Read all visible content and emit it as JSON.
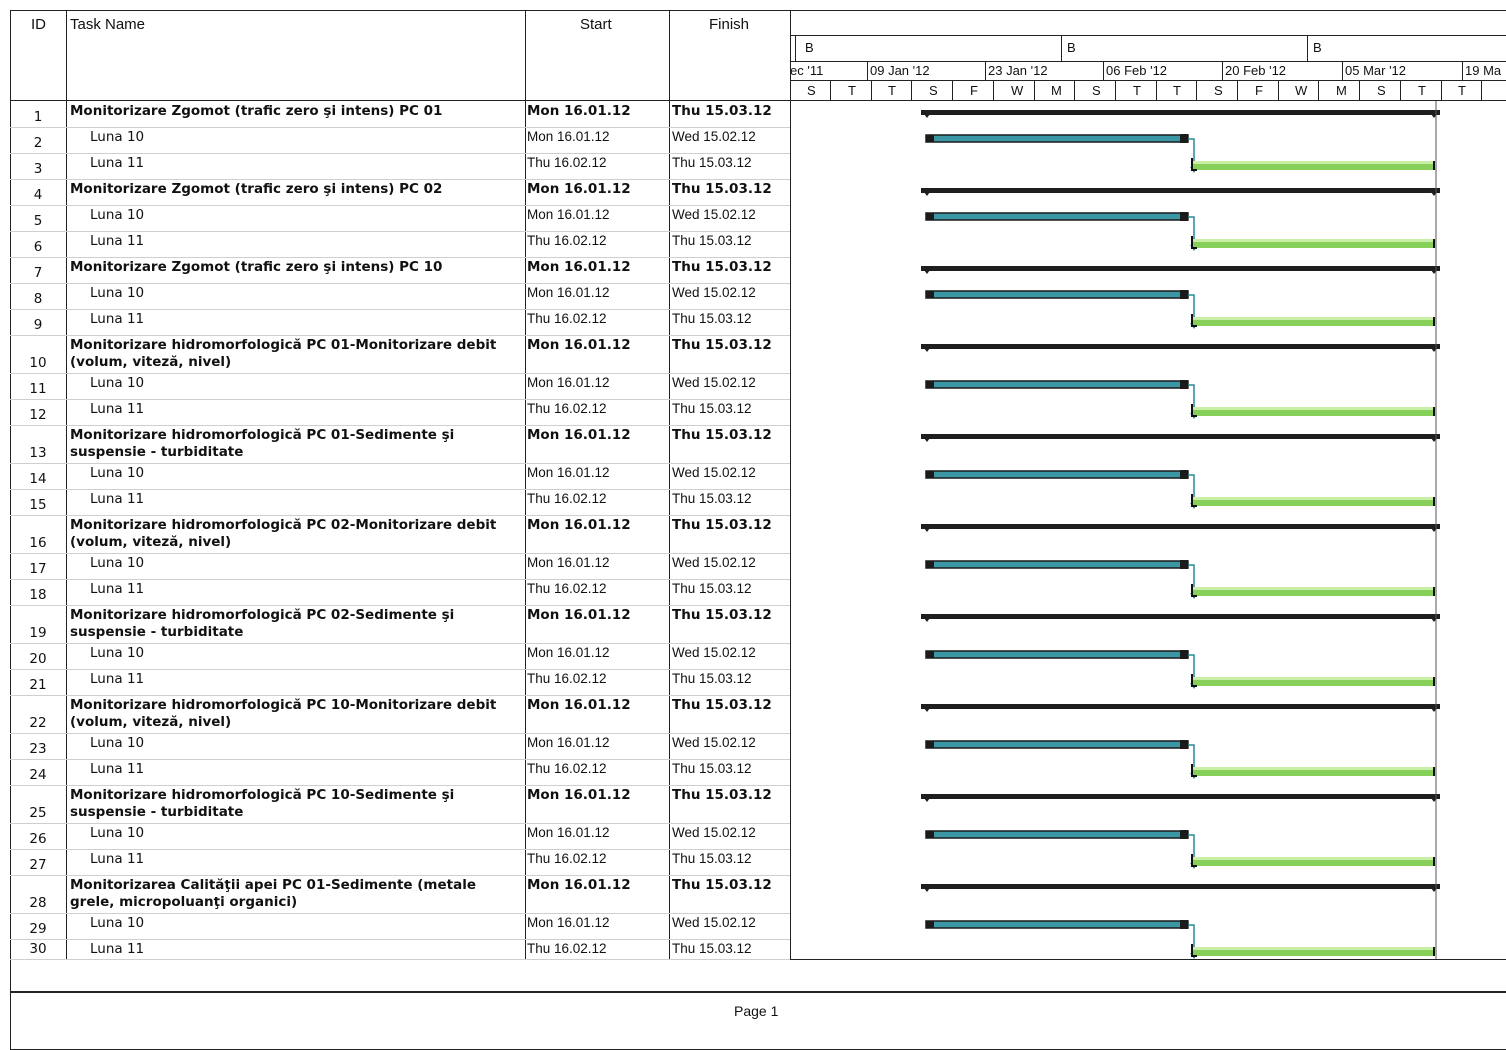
{
  "headers": {
    "id": "ID",
    "task": "Task Name",
    "start": "Start",
    "finish": "Finish"
  },
  "timescale": {
    "top": [
      "B",
      "B",
      "B"
    ],
    "mid": [
      "ec '11",
      "09 Jan '12",
      "23 Jan '12",
      "06 Feb '12",
      "20 Feb '12",
      "05 Mar '12",
      "19 Ma"
    ],
    "days": [
      "S",
      "T",
      "T",
      "S",
      "F",
      "W",
      "M",
      "S",
      "T",
      "T",
      "S",
      "F",
      "W",
      "M",
      "S",
      "T",
      "T"
    ]
  },
  "tasks": [
    {
      "id": "1",
      "name": "Monitorizare Zgomot (trafic zero şi intens) PC 01",
      "start": "Mon 16.01.12",
      "finish": "Thu 15.03.12",
      "summary": true
    },
    {
      "id": "2",
      "name": "Luna 10",
      "start": "Mon 16.01.12",
      "finish": "Wed 15.02.12",
      "summary": false
    },
    {
      "id": "3",
      "name": "Luna 11",
      "start": "Thu 16.02.12",
      "finish": "Thu 15.03.12",
      "summary": false
    },
    {
      "id": "4",
      "name": "Monitorizare Zgomot (trafic zero şi intens) PC 02",
      "start": "Mon 16.01.12",
      "finish": "Thu 15.03.12",
      "summary": true
    },
    {
      "id": "5",
      "name": "Luna 10",
      "start": "Mon 16.01.12",
      "finish": "Wed 15.02.12",
      "summary": false
    },
    {
      "id": "6",
      "name": "Luna 11",
      "start": "Thu 16.02.12",
      "finish": "Thu 15.03.12",
      "summary": false
    },
    {
      "id": "7",
      "name": "Monitorizare Zgomot (trafic zero şi intens) PC 10",
      "start": "Mon 16.01.12",
      "finish": "Thu 15.03.12",
      "summary": true
    },
    {
      "id": "8",
      "name": "Luna 10",
      "start": "Mon 16.01.12",
      "finish": "Wed 15.02.12",
      "summary": false
    },
    {
      "id": "9",
      "name": "Luna 11",
      "start": "Thu 16.02.12",
      "finish": "Thu 15.03.12",
      "summary": false
    },
    {
      "id": "10",
      "name": "Monitorizare hidromorfologică PC 01-Monitorizare debit (volum, viteză, nivel)",
      "start": "Mon 16.01.12",
      "finish": "Thu 15.03.12",
      "summary": true
    },
    {
      "id": "11",
      "name": "Luna 10",
      "start": "Mon 16.01.12",
      "finish": "Wed 15.02.12",
      "summary": false
    },
    {
      "id": "12",
      "name": "Luna 11",
      "start": "Thu 16.02.12",
      "finish": "Thu 15.03.12",
      "summary": false
    },
    {
      "id": "13",
      "name": "Monitorizare hidromorfologică PC 01-Sedimente şi suspensie - turbiditate",
      "start": "Mon 16.01.12",
      "finish": "Thu 15.03.12",
      "summary": true
    },
    {
      "id": "14",
      "name": "Luna 10",
      "start": "Mon 16.01.12",
      "finish": "Wed 15.02.12",
      "summary": false
    },
    {
      "id": "15",
      "name": "Luna 11",
      "start": "Thu 16.02.12",
      "finish": "Thu 15.03.12",
      "summary": false
    },
    {
      "id": "16",
      "name": "Monitorizare hidromorfologică PC 02-Monitorizare debit (volum, viteză, nivel)",
      "start": "Mon 16.01.12",
      "finish": "Thu 15.03.12",
      "summary": true
    },
    {
      "id": "17",
      "name": "Luna 10",
      "start": "Mon 16.01.12",
      "finish": "Wed 15.02.12",
      "summary": false
    },
    {
      "id": "18",
      "name": "Luna 11",
      "start": "Thu 16.02.12",
      "finish": "Thu 15.03.12",
      "summary": false
    },
    {
      "id": "19",
      "name": "Monitorizare hidromorfologică PC 02-Sedimente şi suspensie - turbiditate",
      "start": "Mon 16.01.12",
      "finish": "Thu 15.03.12",
      "summary": true
    },
    {
      "id": "20",
      "name": "Luna 10",
      "start": "Mon 16.01.12",
      "finish": "Wed 15.02.12",
      "summary": false
    },
    {
      "id": "21",
      "name": "Luna 11",
      "start": "Thu 16.02.12",
      "finish": "Thu 15.03.12",
      "summary": false
    },
    {
      "id": "22",
      "name": "Monitorizare hidromorfologică PC 10-Monitorizare debit (volum, viteză, nivel)",
      "start": "Mon 16.01.12",
      "finish": "Thu 15.03.12",
      "summary": true
    },
    {
      "id": "23",
      "name": "Luna 10",
      "start": "Mon 16.01.12",
      "finish": "Wed 15.02.12",
      "summary": false
    },
    {
      "id": "24",
      "name": "Luna 11",
      "start": "Thu 16.02.12",
      "finish": "Thu 15.03.12",
      "summary": false
    },
    {
      "id": "25",
      "name": "Monitorizare hidromorfologică PC 10-Sedimente şi suspensie - turbiditate",
      "start": "Mon 16.01.12",
      "finish": "Thu 15.03.12",
      "summary": true
    },
    {
      "id": "26",
      "name": "Luna 10",
      "start": "Mon 16.01.12",
      "finish": "Wed 15.02.12",
      "summary": false
    },
    {
      "id": "27",
      "name": "Luna 11",
      "start": "Thu 16.02.12",
      "finish": "Thu 15.03.12",
      "summary": false
    },
    {
      "id": "28",
      "name": "Monitorizarea Calităţii apei PC 01-Sedimente (metale grele, micropoluanţi organici)",
      "start": "Mon 16.01.12",
      "finish": "Thu 15.03.12",
      "summary": true
    },
    {
      "id": "29",
      "name": "Luna 10",
      "start": "Mon 16.01.12",
      "finish": "Wed 15.02.12",
      "summary": false
    },
    {
      "id": "30",
      "name": "Luna 11",
      "start": "Thu 16.02.12",
      "finish": "Thu 15.03.12",
      "summary": false
    }
  ],
  "footer": {
    "page": "Page 1"
  }
}
